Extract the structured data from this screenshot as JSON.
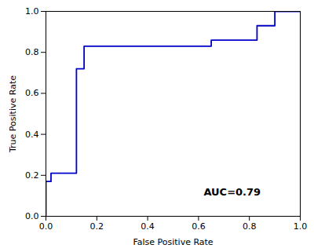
{
  "chart_data": {
    "type": "line",
    "x": [
      0.0,
      0.0,
      0.02,
      0.02,
      0.12,
      0.12,
      0.15,
      0.15,
      0.65,
      0.65,
      0.83,
      0.83,
      0.9,
      0.9,
      1.0
    ],
    "values": [
      0.0,
      0.17,
      0.17,
      0.21,
      0.21,
      0.72,
      0.72,
      0.83,
      0.83,
      0.86,
      0.86,
      0.93,
      0.93,
      1.0,
      1.0
    ],
    "color": "#0000CC",
    "xlabel": "False Positive Rate",
    "ylabel": "True Positive Rate",
    "xlim": [
      0.0,
      1.0
    ],
    "ylim": [
      0.0,
      1.0
    ],
    "xticks": [
      {
        "value": 0,
        "label": "0.0"
      },
      0.2,
      0.4,
      0.6,
      0.8,
      {
        "value": 1,
        "label": "1.0"
      }
    ],
    "yticks": [
      {
        "value": 0,
        "label": "0.0"
      },
      0.2,
      0.4,
      0.6,
      0.8,
      {
        "value": 1,
        "label": "1.0"
      }
    ],
    "annotations": [
      "AUC=0.79"
    ],
    "grid": false
  }
}
